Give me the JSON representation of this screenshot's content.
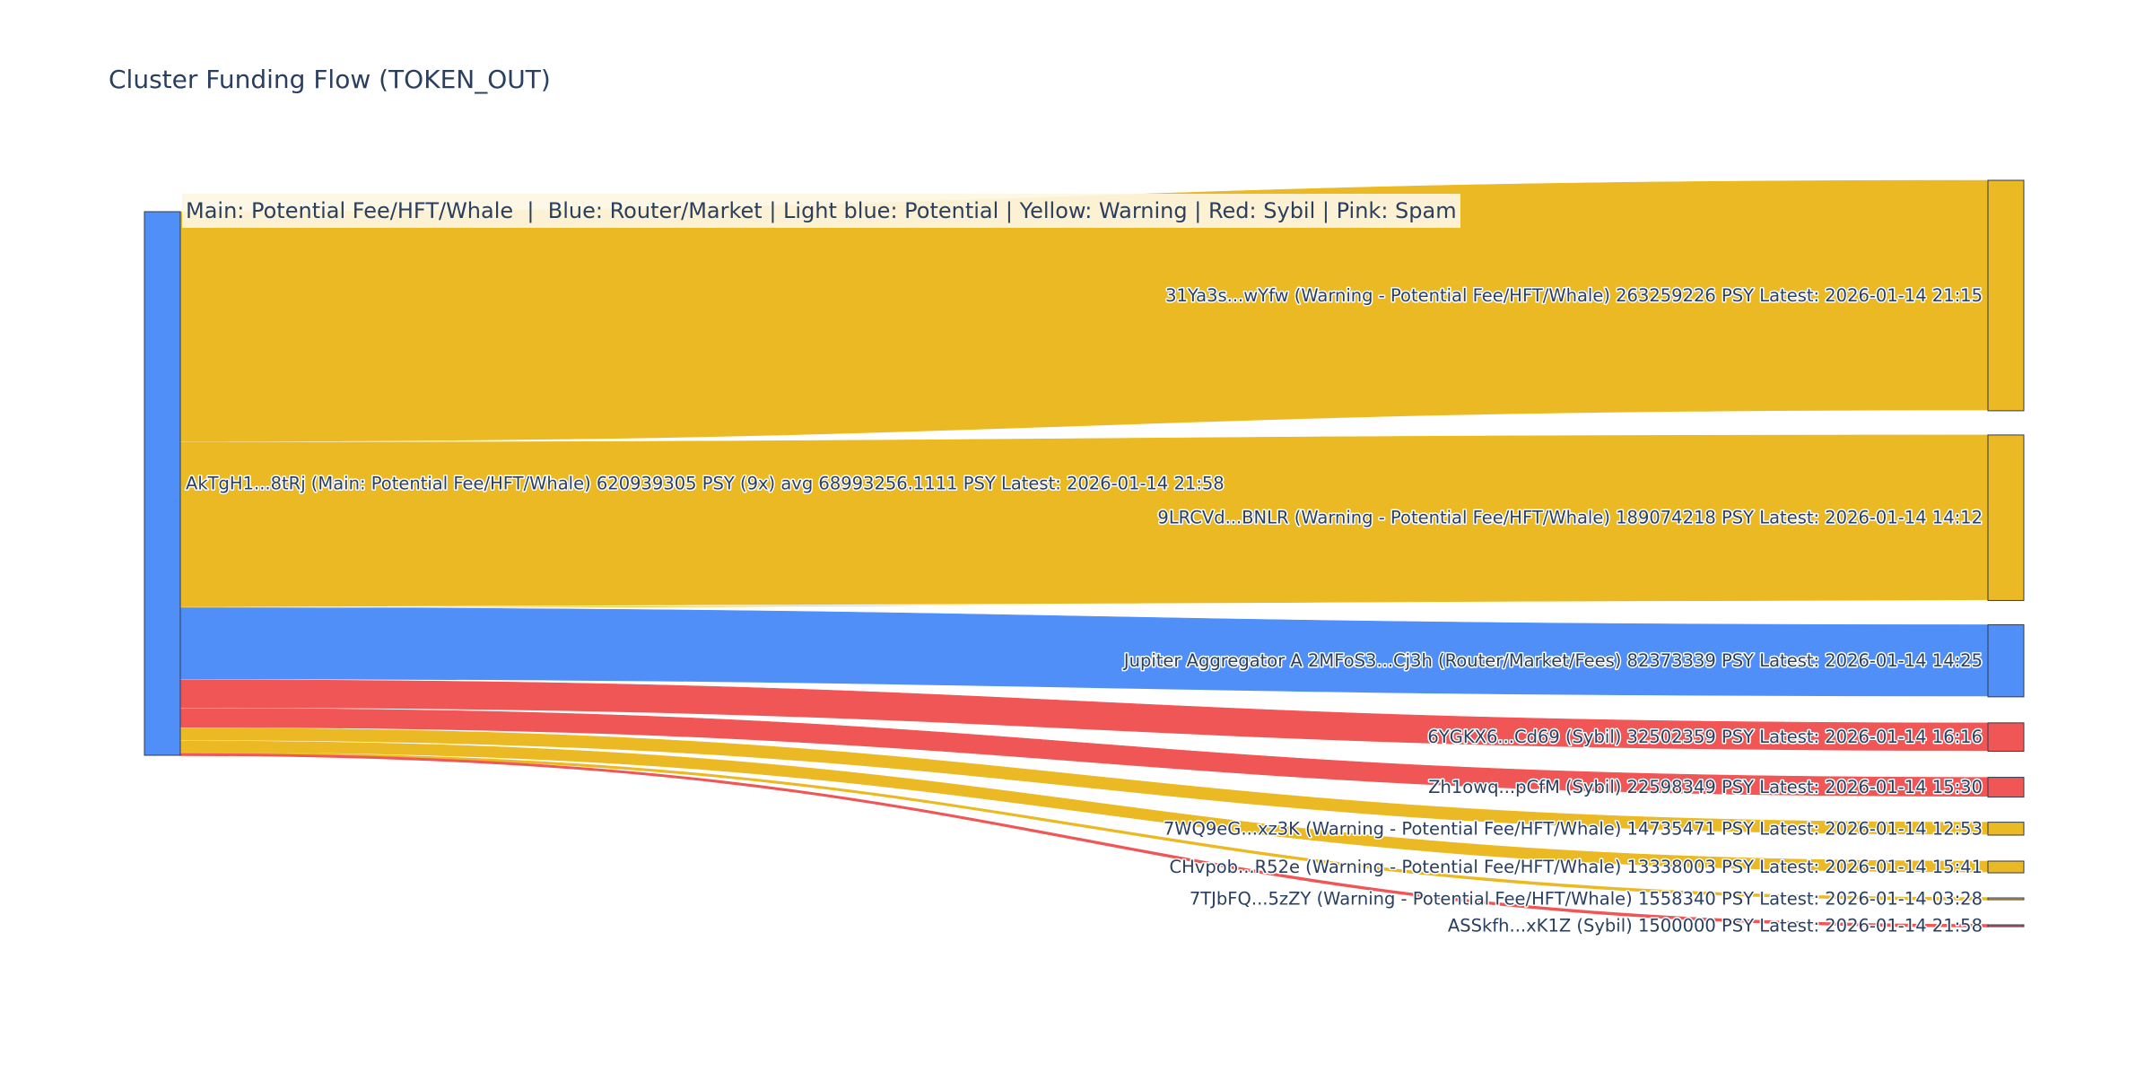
{
  "chart_title": "Cluster Funding Flow (TOKEN_OUT)",
  "legend_text": "Main: Potential Fee/HFT/Whale  |  Blue: Router/Market | Light blue: Potential | Yellow: Warning | Red: Sybil | Pink: Spam",
  "colors": {
    "main": "#4f8ff7",
    "warning": "#ebb923",
    "router": "#4f8ff7",
    "sybil": "#f05656",
    "text": "#2a3f5f"
  },
  "chart_data": {
    "type": "sankey",
    "title": "Cluster Funding Flow (TOKEN_OUT)",
    "unit": "PSY",
    "source": {
      "id": "AkTgH1...8tRj",
      "label": "AkTgH1...8tRj (Main: Potential Fee/HFT/Whale) 620939305 PSY (9x) avg 68993256.1111 PSY Latest: 2026-01-14 21:58",
      "category": "main",
      "total": 620939305
    },
    "targets": [
      {
        "id": "31Ya3s...wYfw",
        "label": "31Ya3s...wYfw (Warning - Potential Fee/HFT/Whale) 263259226 PSY Latest: 2026-01-14 21:15",
        "value": 263259226,
        "category": "warning"
      },
      {
        "id": "9LRCVd...BNLR",
        "label": "9LRCVd...BNLR (Warning - Potential Fee/HFT/Whale) 189074218 PSY Latest: 2026-01-14 14:12",
        "value": 189074218,
        "category": "warning"
      },
      {
        "id": "2MFoS3...Cj3h",
        "label": "Jupiter Aggregator A 2MFoS3...Cj3h (Router/Market/Fees) 82373339 PSY Latest: 2026-01-14 14:25",
        "value": 82373339,
        "category": "router"
      },
      {
        "id": "6YGKX6...Cd69",
        "label": "6YGKX6...Cd69 (Sybil) 32502359 PSY Latest: 2026-01-14 16:16",
        "value": 32502359,
        "category": "sybil"
      },
      {
        "id": "Zh1owq...pCfM",
        "label": "Zh1owq...pCfM (Sybil) 22598349 PSY Latest: 2026-01-14 15:30",
        "value": 22598349,
        "category": "sybil"
      },
      {
        "id": "7WQ9eG...xz3K",
        "label": "7WQ9eG...xz3K (Warning - Potential Fee/HFT/Whale) 14735471 PSY Latest: 2026-01-14 12:53",
        "value": 14735471,
        "category": "warning"
      },
      {
        "id": "CHvpob...R52e",
        "label": "CHvpob...R52e (Warning - Potential Fee/HFT/Whale) 13338003 PSY Latest: 2026-01-14 15:41",
        "value": 13338003,
        "category": "warning"
      },
      {
        "id": "7TJbFQ...5zZY",
        "label": "7TJbFQ...5zZY (Warning - Potential Fee/HFT/Whale) 1558340 PSY Latest: 2026-01-14 03:28",
        "value": 1558340,
        "category": "warning"
      },
      {
        "id": "ASSkfh...xK1Z",
        "label": "ASSkfh...xK1Z (Sybil) 1500000 PSY Latest: 2026-01-14 21:58",
        "value": 1500000,
        "category": "sybil"
      }
    ]
  }
}
